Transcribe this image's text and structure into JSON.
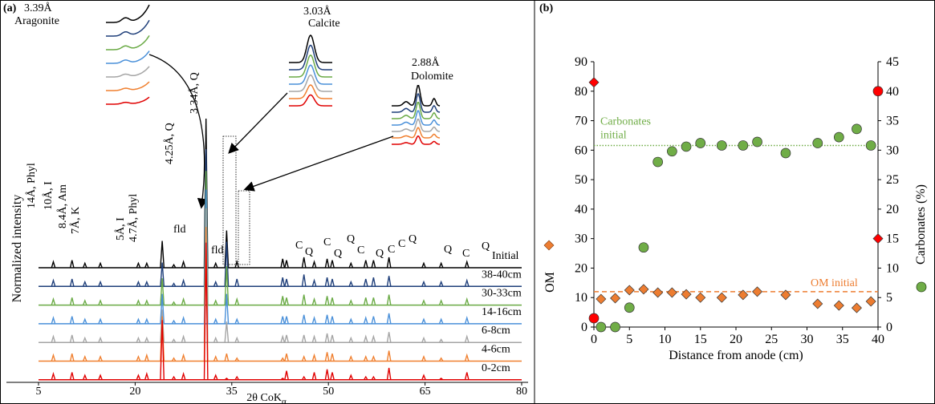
{
  "chart_data": [
    {
      "type": "xrd",
      "panel_label": "(a)",
      "x_label": {
        "text": "2θ CoK",
        "subscript": "α"
      },
      "y_label": "Normalized intensity",
      "xlim": [
        5,
        80
      ],
      "xticks": [
        5,
        20,
        35,
        50,
        65,
        80
      ],
      "x": [
        7.3,
        10.2,
        12.2,
        14.6,
        20.5,
        21.8,
        24.2,
        26.0,
        27.5,
        31.0,
        32.5,
        34.2,
        35.8,
        42.9,
        43.5,
        46.2,
        47.8,
        49.8,
        50.6,
        53.5,
        55.8,
        57.0,
        59.4,
        64.8,
        67.5,
        71.5
      ],
      "series": [
        {
          "name": "Initial",
          "color": "#000000",
          "values": [
            4,
            5,
            3,
            3,
            3,
            3,
            18,
            2,
            4,
            100,
            3,
            25,
            4,
            6,
            5,
            7,
            4,
            6,
            5,
            3,
            5,
            5,
            7,
            3,
            3,
            4
          ]
        },
        {
          "name": "38-40cm",
          "color": "#1f3f7a",
          "values": [
            4,
            5,
            3,
            3,
            3,
            3,
            16,
            2,
            4,
            92,
            3,
            30,
            5,
            6,
            5,
            8,
            4,
            6,
            5,
            3,
            5,
            6,
            7,
            3,
            3,
            4
          ]
        },
        {
          "name": "30-33cm",
          "color": "#6aaa45",
          "values": [
            4,
            5,
            3,
            3,
            3,
            3,
            18,
            2,
            4,
            90,
            3,
            26,
            4,
            6,
            5,
            7,
            4,
            6,
            5,
            3,
            5,
            5,
            7,
            3,
            3,
            4
          ]
        },
        {
          "name": "14-16cm",
          "color": "#4a90d9",
          "values": [
            4,
            5,
            3,
            3,
            3,
            3,
            20,
            2,
            4,
            90,
            3,
            20,
            3,
            5,
            5,
            6,
            4,
            6,
            5,
            3,
            4,
            5,
            7,
            3,
            3,
            4
          ]
        },
        {
          "name": "6-8cm",
          "color": "#a5a5a5",
          "values": [
            4,
            5,
            3,
            3,
            3,
            3,
            22,
            2,
            4,
            90,
            3,
            14,
            3,
            4,
            5,
            5,
            4,
            6,
            5,
            3,
            4,
            4,
            7,
            3,
            2,
            4
          ]
        },
        {
          "name": "4-6cm",
          "color": "#f08030",
          "values": [
            4,
            5,
            3,
            3,
            3,
            4,
            30,
            2,
            4,
            90,
            3,
            5,
            2,
            2,
            5,
            3,
            4,
            6,
            5,
            3,
            3,
            3,
            7,
            3,
            2,
            4
          ]
        },
        {
          "name": "0-2cm",
          "color": "#e00000",
          "values": [
            4,
            5,
            3,
            3,
            3,
            4,
            40,
            2,
            4,
            92,
            3,
            1,
            2,
            1,
            6,
            2,
            5,
            7,
            5,
            3,
            2,
            2,
            8,
            3,
            1,
            5
          ]
        }
      ],
      "annotations": [
        "3.39Å",
        "Aragonite",
        "3.03Å",
        "Calcite",
        "2.88Å",
        "Dolomite",
        "3.34Å, Q",
        "4.25Å, Q",
        "14Å, Phyl",
        "10Å, I",
        "8.4Å, Am",
        "7Å, K",
        "5Å, I",
        "4.7Å, Phyl",
        "fld",
        "fld",
        "C",
        "Q",
        "C",
        "Q",
        "Q",
        "C",
        "Q",
        "C",
        "C",
        "Q",
        "Q",
        "C",
        "Q"
      ]
    },
    {
      "type": "scatter",
      "panel_label": "(b)",
      "x_label": "Distance from anode (cm)",
      "y_label": "OM",
      "y2_label": "Carbonates (%)",
      "xlim": [
        0,
        40
      ],
      "xticks": [
        0,
        5,
        10,
        15,
        20,
        25,
        30,
        35,
        40
      ],
      "ylim": [
        0,
        90
      ],
      "yticks": [
        0,
        10,
        20,
        30,
        40,
        50,
        60,
        70,
        80,
        90
      ],
      "y2lim": [
        0,
        45
      ],
      "y2ticks": [
        0,
        5,
        10,
        15,
        20,
        25,
        30,
        35,
        40,
        45
      ],
      "series": [
        {
          "marker": "diamond",
          "color": "#ed7d31",
          "axis": "y",
          "x": [
            1,
            3,
            5,
            7,
            9,
            11,
            13,
            15,
            18,
            21,
            23,
            27,
            31.5,
            34.5,
            37,
            39
          ],
          "values": [
            9.5,
            9.8,
            12.5,
            12.8,
            11.7,
            11.7,
            11.1,
            10,
            10,
            10.9,
            12,
            10.9,
            7.9,
            7.3,
            6.5,
            8.7
          ]
        },
        {
          "marker": "circle",
          "color": "#70ad47",
          "axis": "y2",
          "x": [
            1,
            3,
            5,
            7,
            9,
            11,
            13,
            15,
            18,
            21,
            23,
            27,
            31.5,
            34.5,
            37,
            39
          ],
          "values": [
            0,
            0,
            3.3,
            13.5,
            28,
            29.8,
            30.6,
            31.2,
            30.8,
            30.8,
            31.4,
            29.5,
            31.2,
            32.2,
            33.6,
            30.8
          ]
        },
        {
          "marker": "diamond",
          "color": "#ff0000",
          "axis": "y",
          "x": [
            0,
            40
          ],
          "values": [
            83,
            30
          ]
        },
        {
          "marker": "circle",
          "color": "#ff0000",
          "axis": "y2",
          "x": [
            0,
            40
          ],
          "values": [
            1.5,
            40
          ]
        }
      ],
      "reference_lines": [
        {
          "label_lines": [
            "OM initial"
          ],
          "value": 12,
          "axis": "y",
          "color": "#ed7d31",
          "style": "dashed"
        },
        {
          "label_lines": [
            "Carbonates",
            "initial"
          ],
          "value": 30.8,
          "axis": "y2",
          "color": "#70ad47",
          "style": "dotted"
        }
      ]
    }
  ]
}
